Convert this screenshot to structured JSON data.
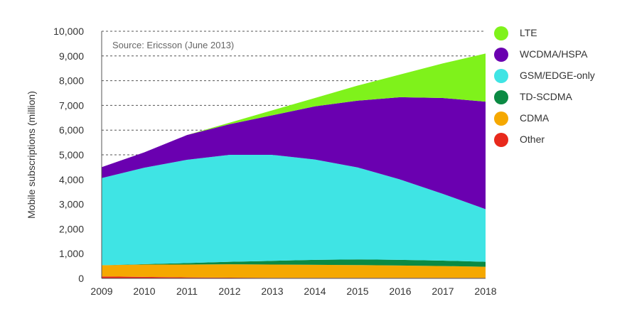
{
  "chart_data": {
    "type": "area",
    "stacked": true,
    "title": "",
    "annotation": "Source: Ericsson (June 2013)",
    "xlabel": "",
    "ylabel": "Mobile subscriptions (million)",
    "x": [
      2009,
      2010,
      2011,
      2012,
      2013,
      2014,
      2015,
      2016,
      2017,
      2018
    ],
    "x_tick_labels": [
      "2009",
      "2010",
      "2011",
      "2012",
      "2013",
      "2014",
      "2015",
      "2016",
      "2017",
      "2018"
    ],
    "ylim": [
      0,
      10000
    ],
    "y_ticks": [
      0,
      1000,
      2000,
      3000,
      4000,
      5000,
      6000,
      7000,
      8000,
      9000,
      10000
    ],
    "y_tick_labels": [
      "0",
      "1,000",
      "2,000",
      "3,000",
      "4,000",
      "5,000",
      "6,000",
      "7,000",
      "8,000",
      "9,000",
      "10,000"
    ],
    "grid": "horizontal dashed",
    "legend_position": "right",
    "series": [
      {
        "name": "Other",
        "color": "#e8291c",
        "values": [
          80,
          60,
          40,
          30,
          20,
          20,
          20,
          20,
          20,
          20
        ]
      },
      {
        "name": "CDMA",
        "color": "#f5a800",
        "values": [
          450,
          500,
          520,
          540,
          540,
          530,
          520,
          500,
          480,
          450
        ]
      },
      {
        "name": "TD-SCDMA",
        "color": "#0b8a43",
        "values": [
          0,
          20,
          60,
          100,
          150,
          200,
          230,
          230,
          220,
          200
        ]
      },
      {
        "name": "GSM/EDGE-only",
        "color": "#3fe4e4",
        "values": [
          3530,
          3900,
          4180,
          4330,
          4290,
          4060,
          3720,
          3250,
          2700,
          2130
        ]
      },
      {
        "name": "WCDMA/HSPA",
        "color": "#6a00b0",
        "values": [
          440,
          620,
          1000,
          1240,
          1600,
          2150,
          2700,
          3330,
          3880,
          4350
        ]
      },
      {
        "name": "LTE",
        "color": "#7ff21b",
        "values": [
          0,
          0,
          0,
          60,
          200,
          340,
          610,
          920,
          1400,
          1950
        ]
      }
    ]
  },
  "legend": {
    "items": [
      {
        "label": "LTE",
        "color": "#7ff21b"
      },
      {
        "label": "WCDMA/HSPA",
        "color": "#6a00b0"
      },
      {
        "label": "GSM/EDGE-only",
        "color": "#3fe4e4"
      },
      {
        "label": "TD-SCDMA",
        "color": "#0b8a43"
      },
      {
        "label": "CDMA",
        "color": "#f5a800"
      },
      {
        "label": "Other",
        "color": "#e8291c"
      }
    ]
  }
}
